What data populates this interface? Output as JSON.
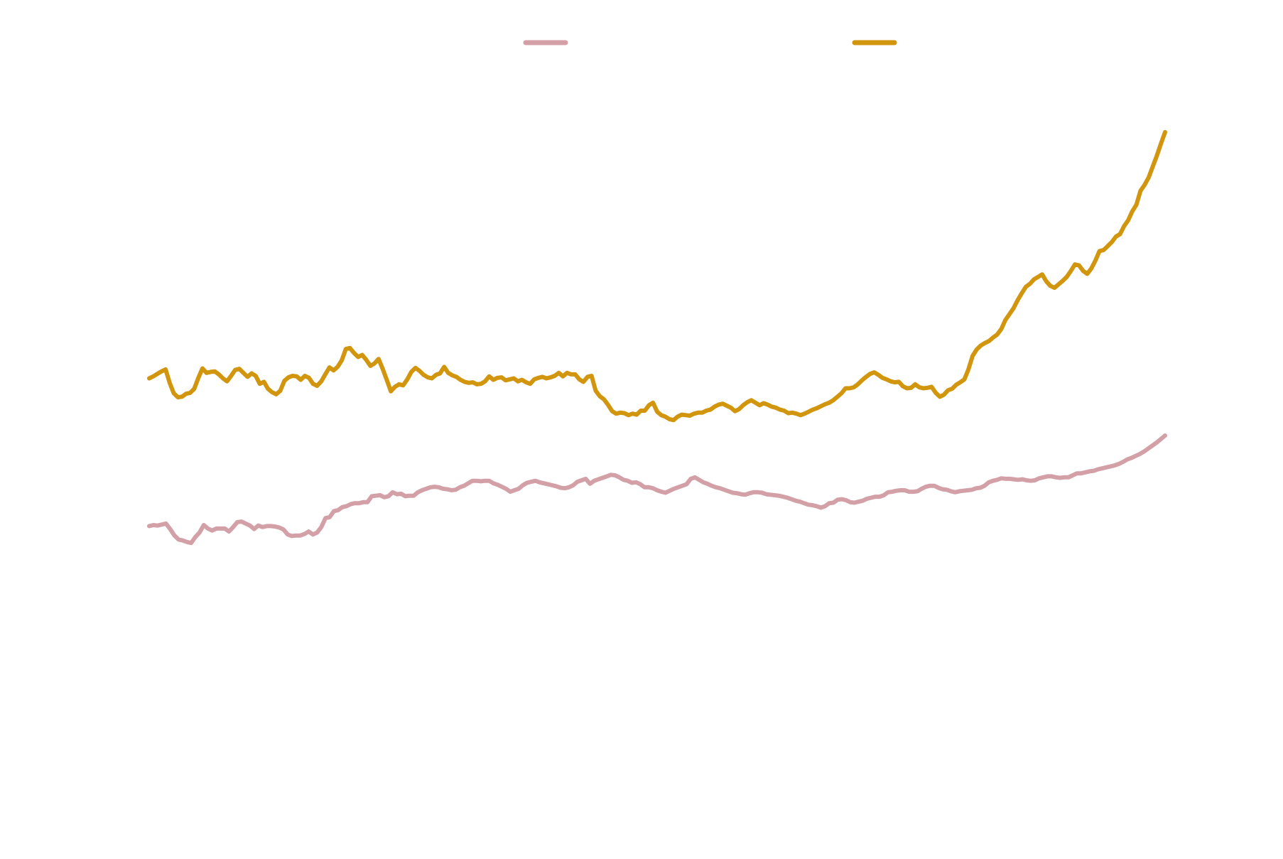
{
  "chart_data": {
    "type": "line",
    "title": "",
    "xlabel": "",
    "ylabel": "",
    "grid": false,
    "legend": {
      "placement": "top-center",
      "columns": 2
    },
    "x": {
      "count": 244
    },
    "ylim": [
      0,
      100
    ],
    "series": [
      {
        "name": "",
        "color": "#d4a0a7",
        "values": [
          20.8,
          21.0,
          20.9,
          21.1,
          21.3,
          20.2,
          18.9,
          18.1,
          17.9,
          17.6,
          17.4,
          18.6,
          19.5,
          21.0,
          20.3,
          19.9,
          20.3,
          20.3,
          20.3,
          19.7,
          20.6,
          21.6,
          21.7,
          21.3,
          20.9,
          20.2,
          20.9,
          20.6,
          20.8,
          20.8,
          20.7,
          20.5,
          20.1,
          19.1,
          18.8,
          18.9,
          18.9,
          19.2,
          19.7,
          19.1,
          19.5,
          20.6,
          22.4,
          22.6,
          23.8,
          24.0,
          24.6,
          24.8,
          25.2,
          25.4,
          25.4,
          25.6,
          25.6,
          26.8,
          26.9,
          27.0,
          26.6,
          26.8,
          27.6,
          27.2,
          27.3,
          26.8,
          26.9,
          26.9,
          27.6,
          28.0,
          28.3,
          28.6,
          28.7,
          28.6,
          28.3,
          28.2,
          28.0,
          28.1,
          28.6,
          28.9,
          29.4,
          29.9,
          29.9,
          29.8,
          29.9,
          29.9,
          29.4,
          29.1,
          28.7,
          28.3,
          27.7,
          28.0,
          28.3,
          29.0,
          29.5,
          29.7,
          29.9,
          29.6,
          29.4,
          29.2,
          29.0,
          28.8,
          28.5,
          28.4,
          28.6,
          29.0,
          29.7,
          30.0,
          30.3,
          29.3,
          29.9,
          30.2,
          30.5,
          30.8,
          31.1,
          31.0,
          30.6,
          30.1,
          29.9,
          29.5,
          29.6,
          29.2,
          28.6,
          28.6,
          28.4,
          28.0,
          27.7,
          27.5,
          27.9,
          28.3,
          28.6,
          28.9,
          29.2,
          30.3,
          30.6,
          30.1,
          29.6,
          29.3,
          28.9,
          28.6,
          28.4,
          28.1,
          27.8,
          27.5,
          27.4,
          27.2,
          27.1,
          27.4,
          27.6,
          27.6,
          27.5,
          27.2,
          27.1,
          27.0,
          26.9,
          26.7,
          26.5,
          26.2,
          25.9,
          25.7,
          25.4,
          25.1,
          25.0,
          24.8,
          24.5,
          24.8,
          25.4,
          25.5,
          26.1,
          26.2,
          26.0,
          25.6,
          25.5,
          25.7,
          25.9,
          26.3,
          26.5,
          26.7,
          26.7,
          27.0,
          27.6,
          27.7,
          27.9,
          28.0,
          28.0,
          27.7,
          27.7,
          27.8,
          28.3,
          28.7,
          28.9,
          28.9,
          28.5,
          28.2,
          28.1,
          27.8,
          27.6,
          27.8,
          27.9,
          28.0,
          28.1,
          28.4,
          28.5,
          28.9,
          29.6,
          29.9,
          30.1,
          30.4,
          30.3,
          30.3,
          30.2,
          30.1,
          30.2,
          30.0,
          29.9,
          30.0,
          30.4,
          30.6,
          30.8,
          30.8,
          30.6,
          30.5,
          30.6,
          30.6,
          31.0,
          31.4,
          31.4,
          31.6,
          31.8,
          31.9,
          32.2,
          32.4,
          32.6,
          32.8,
          33.0,
          33.3,
          33.7,
          34.2,
          34.5,
          34.9,
          35.3,
          35.8,
          36.4,
          37.0,
          37.6,
          38.3,
          39.0
        ]
      },
      {
        "name": "",
        "color": "#d1950e",
        "values": [
          50.5,
          50.9,
          51.4,
          51.9,
          52.3,
          49.6,
          47.5,
          46.7,
          46.8,
          47.4,
          47.6,
          48.4,
          50.6,
          52.5,
          51.6,
          51.8,
          51.9,
          51.3,
          50.5,
          49.9,
          51.0,
          52.2,
          52.4,
          51.6,
          50.8,
          51.5,
          51.0,
          49.4,
          49.8,
          48.4,
          47.7,
          47.3,
          48.0,
          50.0,
          50.7,
          51.0,
          50.9,
          50.2,
          51.0,
          50.6,
          49.4,
          49.0,
          49.9,
          51.3,
          52.7,
          52.1,
          52.8,
          54.1,
          56.4,
          56.6,
          55.6,
          54.8,
          55.2,
          54.2,
          53.0,
          53.5,
          54.4,
          52.4,
          50.2,
          47.9,
          48.8,
          49.3,
          49.1,
          50.3,
          51.8,
          52.6,
          52.0,
          51.2,
          50.7,
          50.5,
          51.2,
          51.5,
          52.8,
          51.6,
          51.1,
          50.8,
          50.2,
          49.8,
          49.6,
          49.7,
          49.3,
          49.4,
          49.9,
          50.9,
          50.2,
          50.6,
          50.7,
          50.1,
          50.3,
          50.5,
          49.9,
          50.2,
          49.7,
          49.4,
          50.3,
          50.6,
          50.8,
          50.5,
          50.7,
          51.0,
          51.6,
          50.9,
          51.6,
          51.3,
          51.3,
          50.3,
          49.8,
          50.8,
          51.0,
          48.0,
          46.9,
          46.3,
          45.2,
          43.9,
          43.4,
          43.6,
          43.5,
          43.1,
          43.4,
          43.2,
          44.0,
          44.0,
          45.1,
          45.6,
          43.8,
          43.1,
          42.8,
          42.3,
          42.1,
          42.8,
          43.2,
          43.1,
          43.0,
          43.4,
          43.6,
          43.6,
          44.0,
          44.2,
          44.8,
          45.2,
          45.4,
          45.0,
          44.6,
          43.9,
          44.3,
          45.1,
          45.7,
          46.1,
          45.6,
          45.1,
          45.5,
          45.2,
          44.8,
          44.6,
          44.2,
          44.0,
          43.5,
          43.6,
          43.4,
          43.1,
          43.4,
          43.8,
          44.2,
          44.5,
          44.9,
          45.3,
          45.6,
          46.1,
          46.8,
          47.5,
          48.5,
          48.5,
          48.7,
          49.3,
          50.1,
          50.8,
          51.4,
          51.7,
          51.2,
          50.6,
          50.3,
          49.9,
          49.7,
          49.8,
          48.9,
          48.5,
          48.6,
          49.3,
          48.7,
          48.5,
          48.6,
          48.8,
          47.6,
          46.8,
          47.2,
          48.1,
          48.4,
          49.2,
          49.7,
          50.3,
          52.3,
          55.0,
          56.3,
          57.1,
          57.6,
          58.0,
          58.7,
          59.3,
          60.4,
          62.2,
          63.4,
          64.6,
          66.2,
          67.6,
          68.9,
          69.5,
          70.4,
          70.9,
          71.4,
          70.0,
          69.1,
          68.7,
          69.4,
          70.1,
          70.9,
          72.1,
          73.4,
          73.2,
          72.1,
          71.5,
          72.6,
          74.2,
          76.1,
          76.3,
          77.1,
          77.9,
          79.0,
          79.5,
          81.1,
          82.3,
          84.1,
          85.4,
          88.2,
          89.4,
          90.9,
          93.1,
          95.3,
          97.7,
          100.0
        ]
      }
    ]
  }
}
